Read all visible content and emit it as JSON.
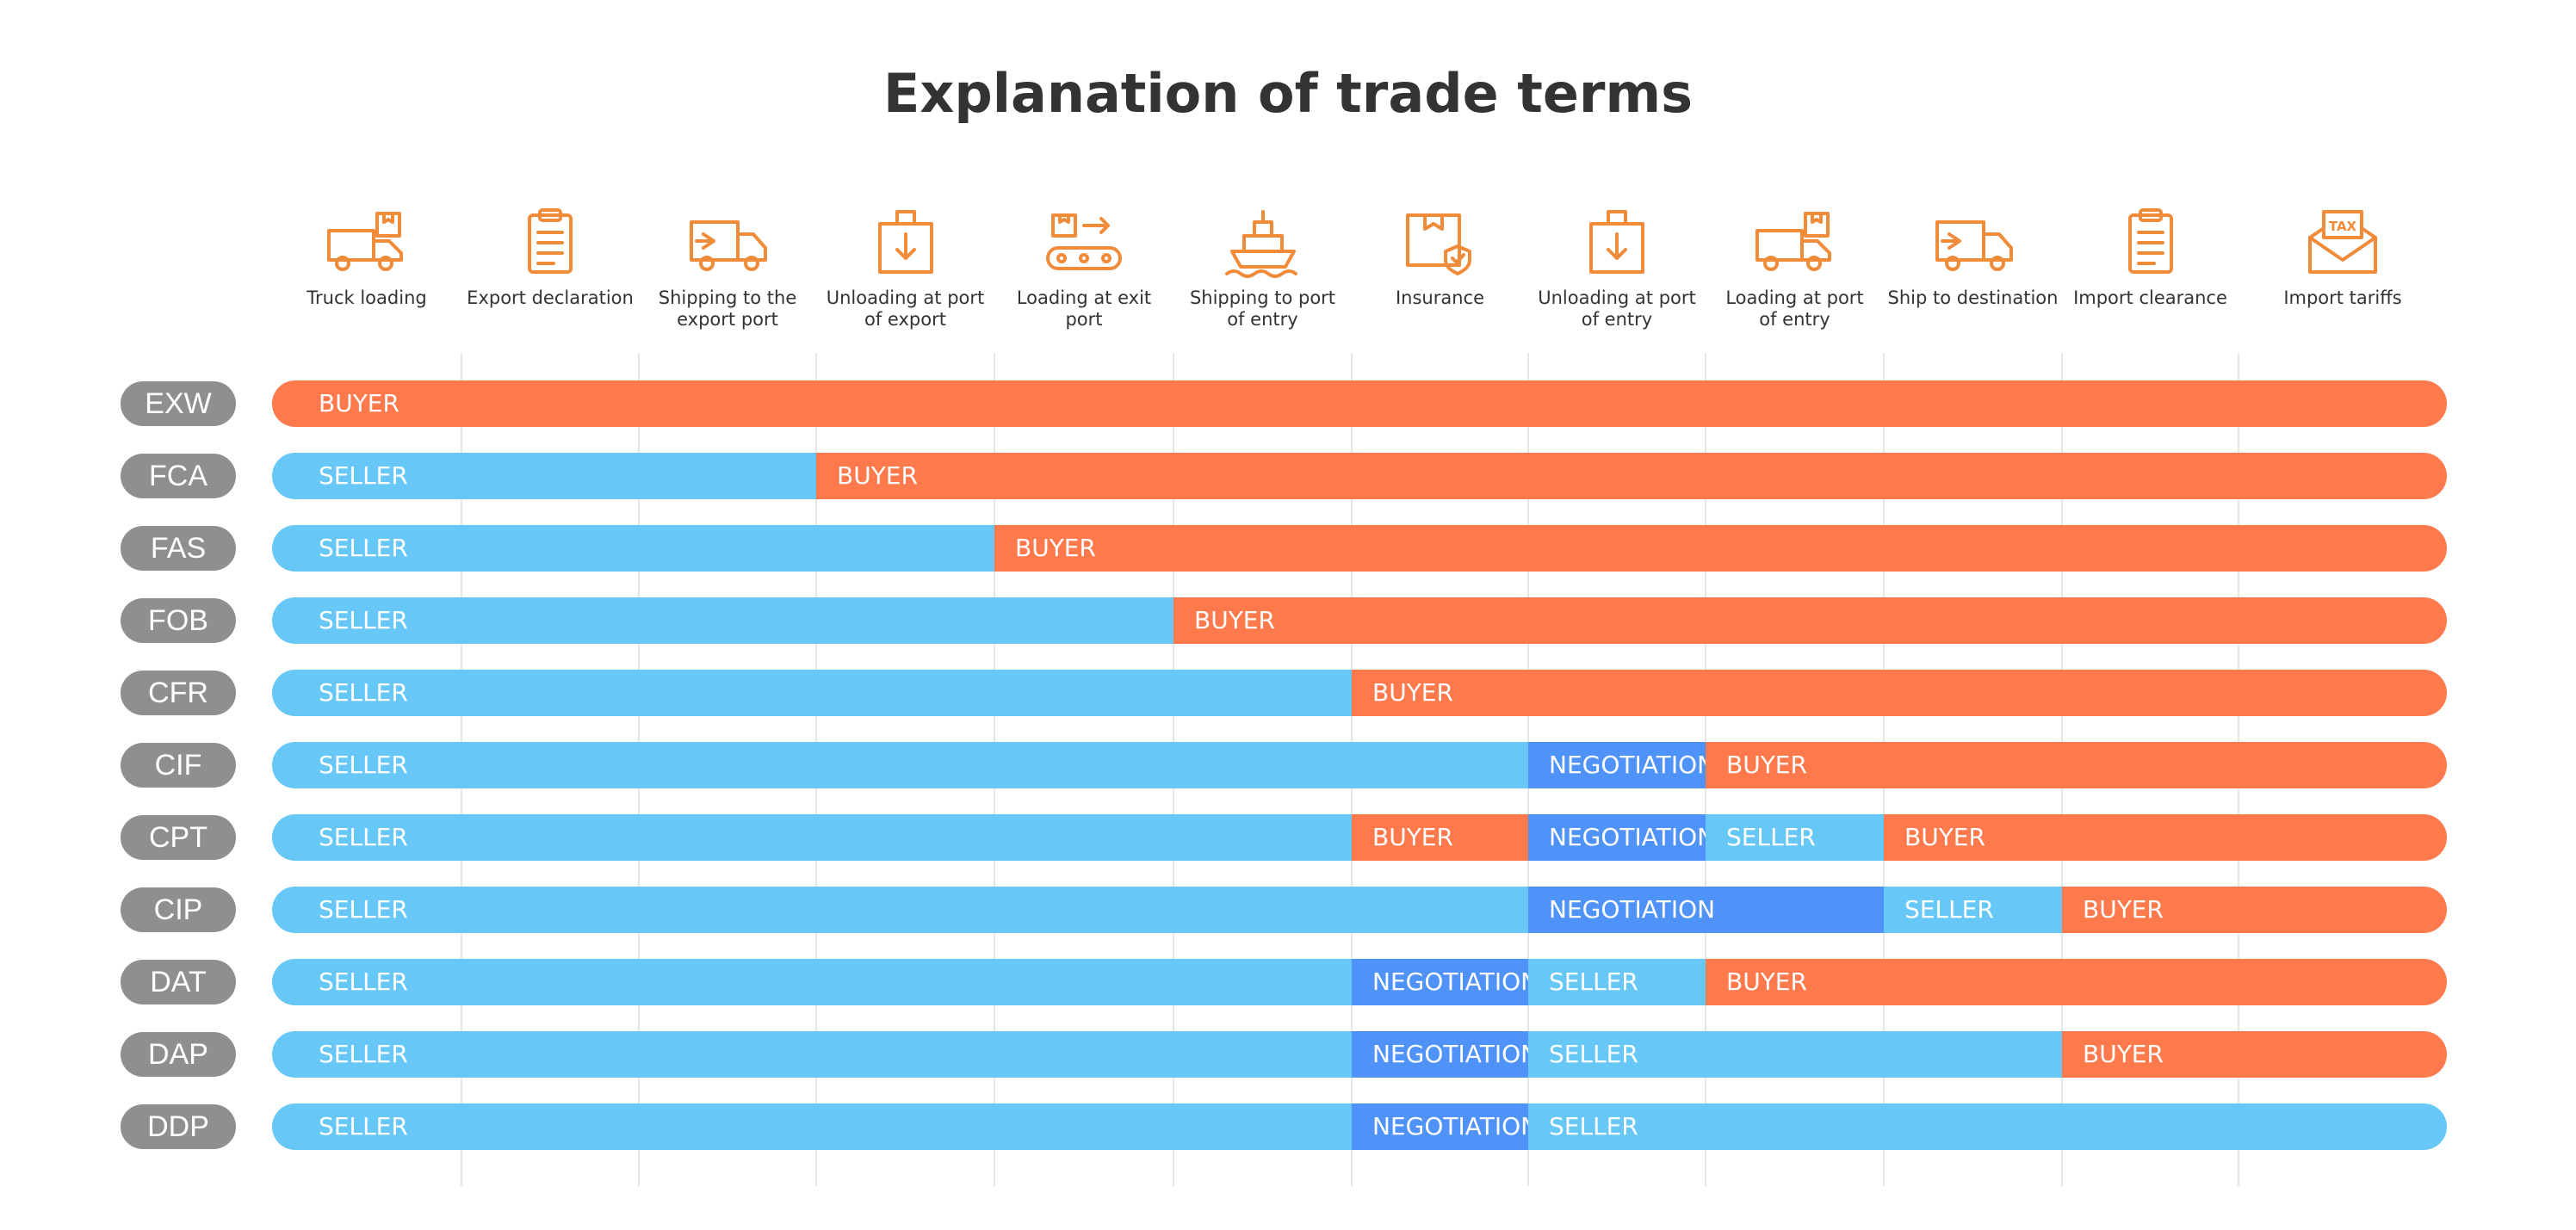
{
  "title": "Explanation of trade terms",
  "colors": {
    "SELLER": "#67c8f7",
    "BUYER": "#fe794c",
    "NEGOTIATION": "#4f92f8",
    "icon": "#f08b3a",
    "label_pill": "#8f8f8f"
  },
  "columns": [
    {
      "label": "Truck loading",
      "icon": "truck-loading-icon"
    },
    {
      "label": "Export declaration",
      "icon": "clipboard-icon"
    },
    {
      "label": "Shipping to the\nexport port",
      "icon": "delivery-truck-icon"
    },
    {
      "label": "Unloading at port\nof export",
      "icon": "box-down-icon"
    },
    {
      "label": "Loading at exit\nport",
      "icon": "conveyor-icon"
    },
    {
      "label": "Shipping to port\nof entry",
      "icon": "ship-icon"
    },
    {
      "label": "Insurance",
      "icon": "insured-box-icon"
    },
    {
      "label": "Unloading at port\nof entry",
      "icon": "box-down-icon"
    },
    {
      "label": "Loading at port\nof entry",
      "icon": "truck-loading-icon"
    },
    {
      "label": "Ship to destination",
      "icon": "delivery-truck-icon"
    },
    {
      "label": "Import clearance",
      "icon": "clipboard-icon"
    },
    {
      "label": "Import tariffs",
      "icon": "tax-envelope-icon"
    }
  ],
  "rows": [
    {
      "term": "EXW",
      "segments": [
        {
          "party": "BUYER",
          "span": 12
        }
      ]
    },
    {
      "term": "FCA",
      "segments": [
        {
          "party": "SELLER",
          "span": 3
        },
        {
          "party": "BUYER",
          "span": 9
        }
      ]
    },
    {
      "term": "FAS",
      "segments": [
        {
          "party": "SELLER",
          "span": 4
        },
        {
          "party": "BUYER",
          "span": 8
        }
      ]
    },
    {
      "term": "FOB",
      "segments": [
        {
          "party": "SELLER",
          "span": 5
        },
        {
          "party": "BUYER",
          "span": 7
        }
      ]
    },
    {
      "term": "CFR",
      "segments": [
        {
          "party": "SELLER",
          "span": 6
        },
        {
          "party": "BUYER",
          "span": 6
        }
      ]
    },
    {
      "term": "CIF",
      "segments": [
        {
          "party": "SELLER",
          "span": 7
        },
        {
          "party": "NEGOTIATION",
          "span": 1
        },
        {
          "party": "BUYER",
          "span": 4
        }
      ]
    },
    {
      "term": "CPT",
      "segments": [
        {
          "party": "SELLER",
          "span": 6
        },
        {
          "party": "BUYER",
          "span": 1
        },
        {
          "party": "NEGOTIATION",
          "span": 1
        },
        {
          "party": "SELLER",
          "span": 1
        },
        {
          "party": "BUYER",
          "span": 3
        }
      ]
    },
    {
      "term": "CIP",
      "segments": [
        {
          "party": "SELLER",
          "span": 7
        },
        {
          "party": "NEGOTIATION",
          "span": 2
        },
        {
          "party": "SELLER",
          "span": 1
        },
        {
          "party": "BUYER",
          "span": 2
        }
      ]
    },
    {
      "term": "DAT",
      "segments": [
        {
          "party": "SELLER",
          "span": 6
        },
        {
          "party": "NEGOTIATION",
          "span": 1
        },
        {
          "party": "SELLER",
          "span": 1
        },
        {
          "party": "BUYER",
          "span": 4
        }
      ]
    },
    {
      "term": "DAP",
      "segments": [
        {
          "party": "SELLER",
          "span": 6
        },
        {
          "party": "NEGOTIATION",
          "span": 1
        },
        {
          "party": "SELLER",
          "span": 3
        },
        {
          "party": "BUYER",
          "span": 2
        }
      ]
    },
    {
      "term": "DDP",
      "segments": [
        {
          "party": "SELLER",
          "span": 6
        },
        {
          "party": "NEGOTIATION",
          "span": 1
        },
        {
          "party": "SELLER",
          "span": 5
        }
      ]
    }
  ]
}
